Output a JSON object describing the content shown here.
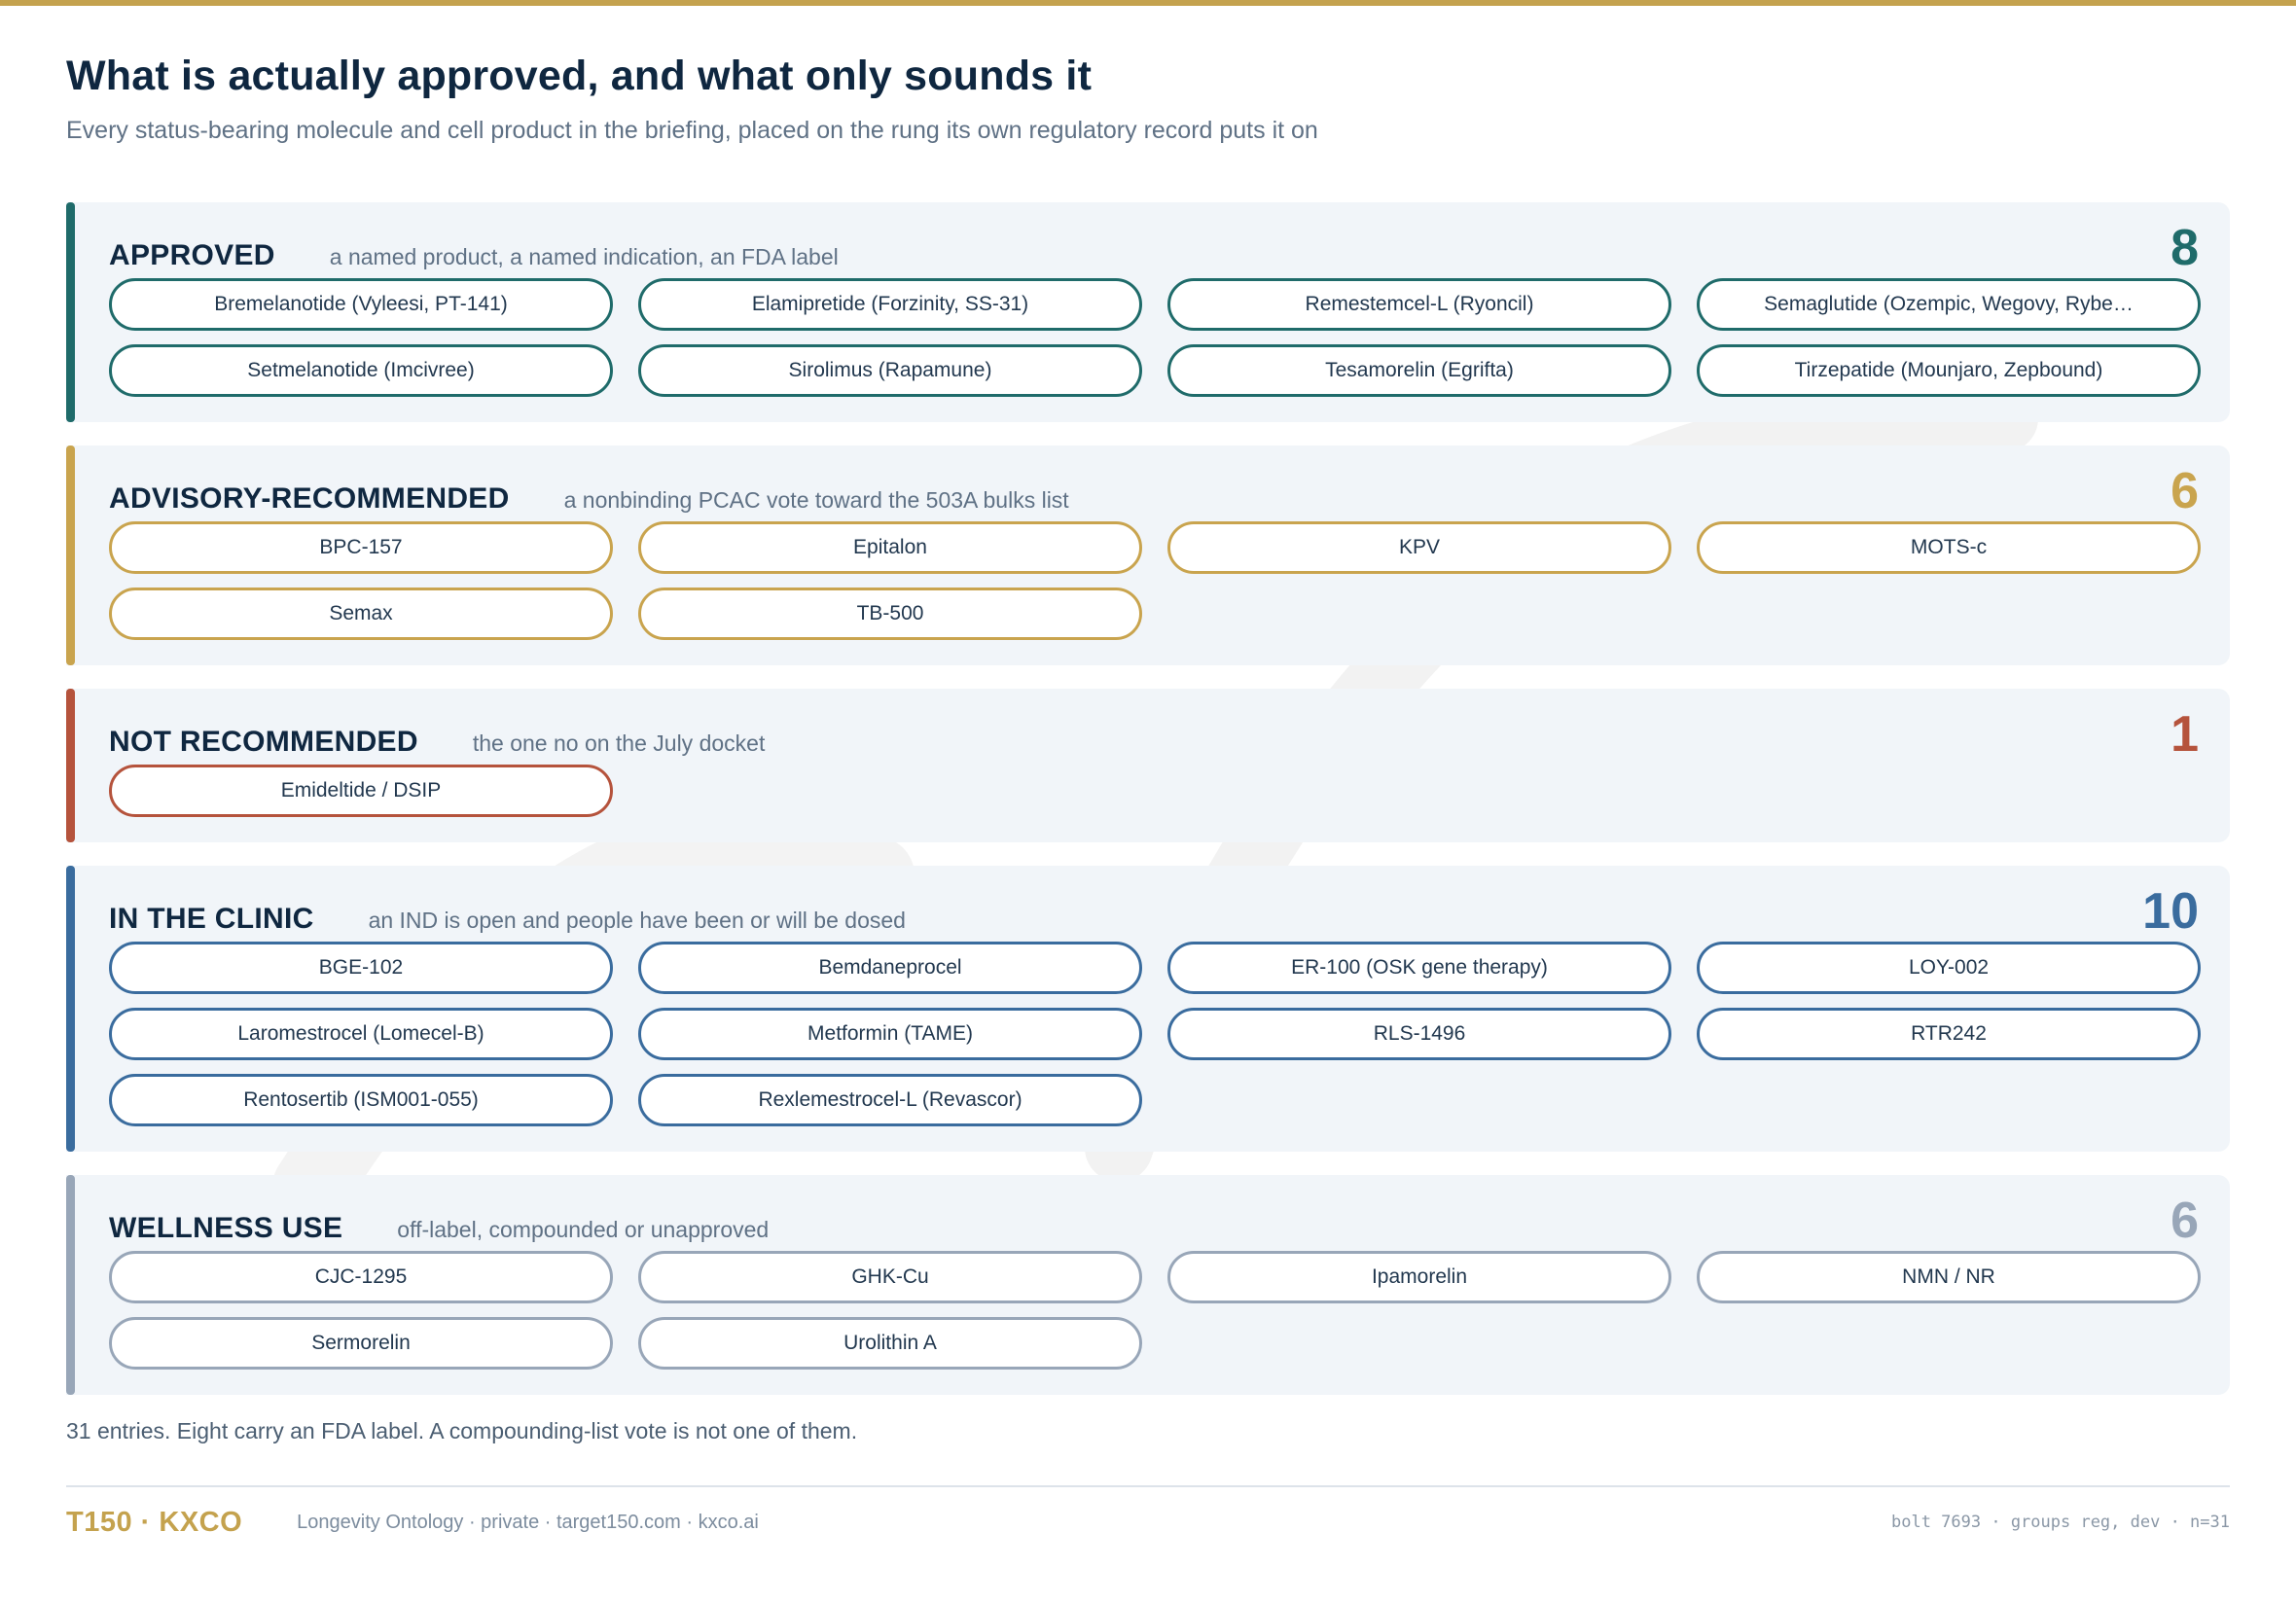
{
  "page": {
    "title": "What is actually approved, and what only sounds it",
    "subtitle": "Every status-bearing molecule and cell product in the briefing, placed on the rung its own regulatory record puts it on"
  },
  "groups": [
    {
      "name": "APPROVED",
      "description": "a named product, a named indication, an FDA label",
      "count": "8",
      "color": "#1f6b6a",
      "items": [
        "Bremelanotide (Vyleesi, PT-141)",
        "Elamipretide (Forzinity, SS-31)",
        "Remestemcel-L (Ryoncil)",
        "Semaglutide (Ozempic, Wegovy, Rybe…",
        "Setmelanotide (Imcivree)",
        "Sirolimus (Rapamune)",
        "Tesamorelin (Egrifta)",
        "Tirzepatide (Mounjaro, Zepbound)"
      ]
    },
    {
      "name": "ADVISORY-RECOMMENDED",
      "description": "a nonbinding PCAC vote toward the 503A bulks list",
      "count": "6",
      "color": "#c9a44e",
      "items": [
        "BPC-157",
        "Epitalon",
        "KPV",
        "MOTS-c",
        "Semax",
        "TB-500"
      ]
    },
    {
      "name": "NOT RECOMMENDED",
      "description": "the one no on the July docket",
      "count": "1",
      "color": "#b5533c",
      "items": [
        "Emideltide / DSIP"
      ]
    },
    {
      "name": "IN THE CLINIC",
      "description": "an IND is open and people have been or will be dosed",
      "count": "10",
      "color": "#3a6c9e",
      "items": [
        "BGE-102",
        "Bemdaneprocel",
        "ER-100 (OSK gene therapy)",
        "LOY-002",
        "Laromestrocel (Lomecel-B)",
        "Metformin (TAME)",
        "RLS-1496",
        "RTR242",
        "Rentosertib (ISM001-055)",
        "Rexlemestrocel-L (Revascor)"
      ]
    },
    {
      "name": "WELLNESS USE",
      "description": "off-label, compounded or unapproved",
      "count": "6",
      "color": "#98a6b8",
      "items": [
        "CJC-1295",
        "GHK-Cu",
        "Ipamorelin",
        "NMN / NR",
        "Sermorelin",
        "Urolithin A"
      ]
    }
  ],
  "summary": "31 entries. Eight carry an FDA label. A compounding-list vote is not one of them.",
  "footer": {
    "brand": "T150 · KXCO",
    "note": "Longevity Ontology · private · target150.com · kxco.ai",
    "build": "bolt 7693 · groups reg, dev · n=31"
  }
}
